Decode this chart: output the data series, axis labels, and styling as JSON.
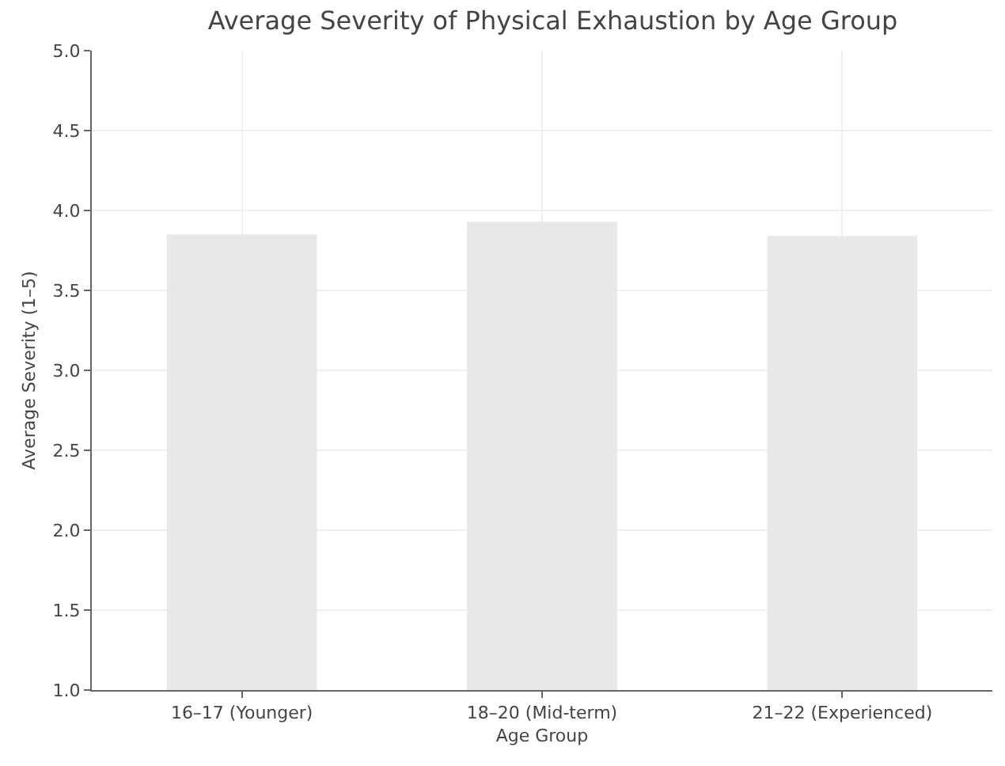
{
  "chart_data": {
    "type": "bar",
    "title": "Average Severity of Physical Exhaustion by Age Group",
    "xlabel": "Age Group",
    "ylabel": "Average Severity (1–5)",
    "categories": [
      "16–17 (Younger)",
      "18–20 (Mid-term)",
      "21–22 (Experienced)"
    ],
    "values": [
      3.85,
      3.93,
      3.84
    ],
    "color": "#e8e8e8",
    "ylim": [
      1,
      5
    ],
    "yticks": [
      {
        "value": 1,
        "label": "1.0"
      },
      1.5,
      {
        "value": 2,
        "label": "2.0"
      },
      2.5,
      {
        "value": 3,
        "label": "3.0"
      },
      3.5,
      {
        "value": 4,
        "label": "4.0"
      },
      4.5,
      {
        "value": 5,
        "label": "5.0"
      }
    ],
    "grid": true
  }
}
